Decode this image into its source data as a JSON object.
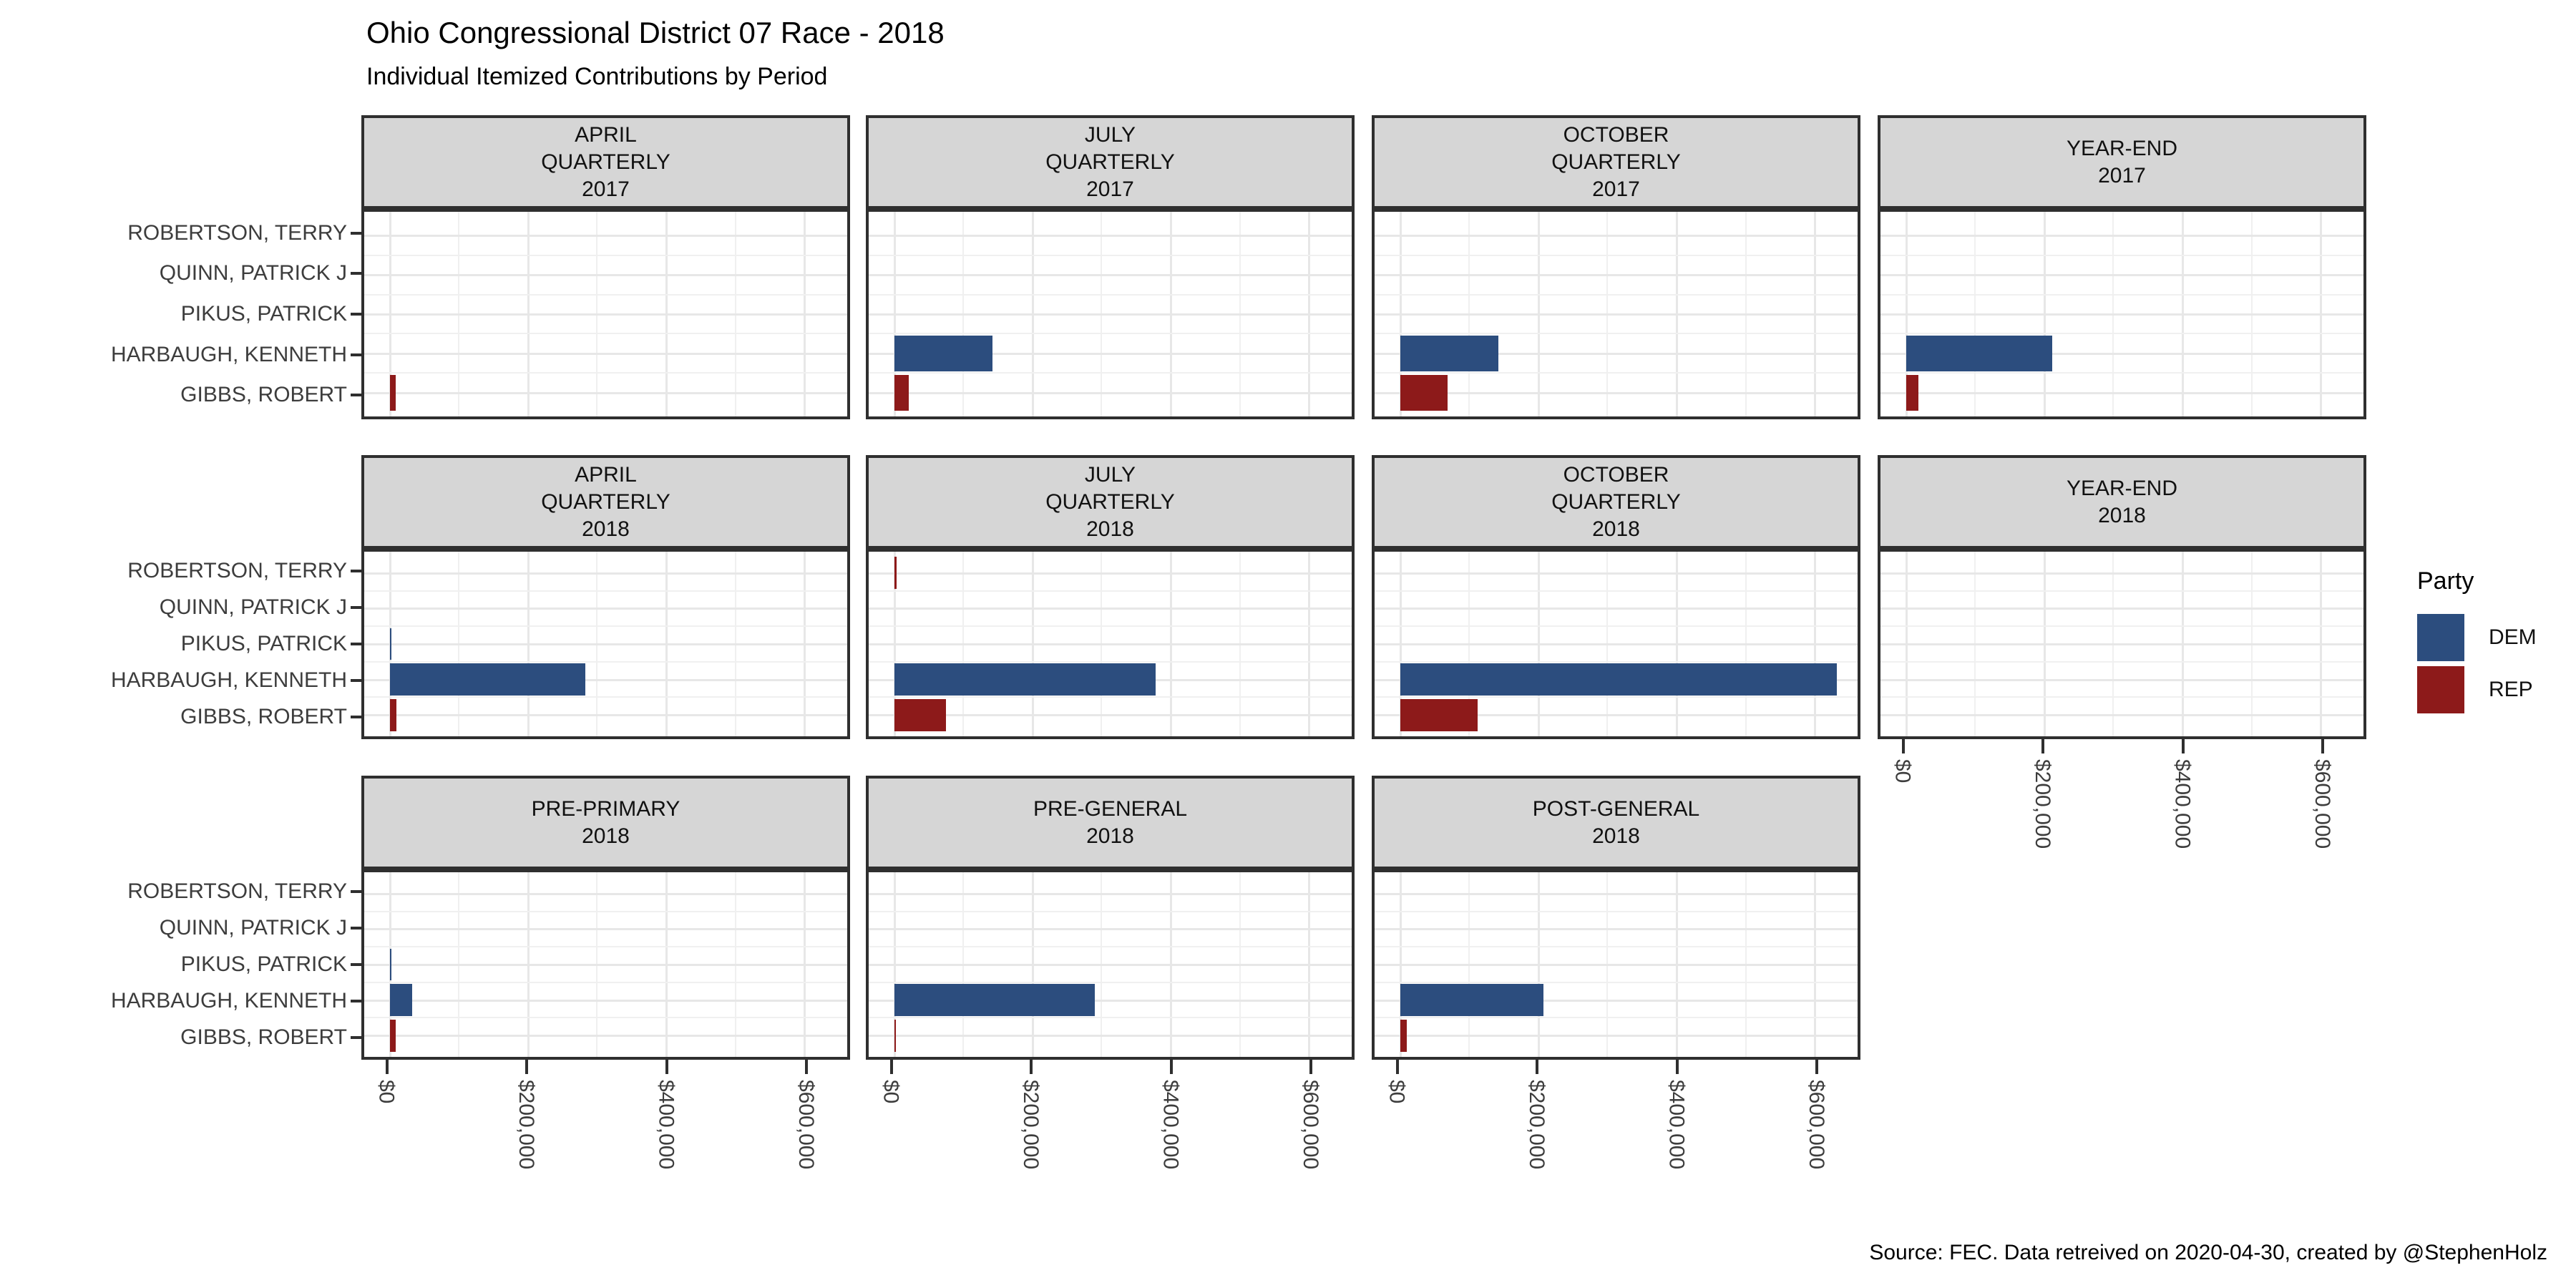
{
  "title": "Ohio Congressional District 07 Race - 2018",
  "subtitle": "Individual Itemized Contributions by Period",
  "caption": "Source: FEC. Data retreived on 2020-04-30, created by @StephenHolz",
  "legend": {
    "title": "Party",
    "items": [
      {
        "label": "DEM",
        "color": "#2C4D7E"
      },
      {
        "label": "REP",
        "color": "#8D1A1A"
      }
    ]
  },
  "style": {
    "dem_color": "#2C4D7E",
    "rep_color": "#8D1A1A",
    "strip_bg": "#D6D6D6",
    "panel_border": "#2F2F2F",
    "grid_major": "#E7E7E7",
    "grid_minor": "#F0F0F0",
    "axis_text": "#3D3D3D"
  },
  "chart_data": {
    "type": "bar",
    "orientation": "horizontal",
    "grid": "on",
    "legend_position": "right",
    "x_axis": {
      "tick_labels": [
        "$0",
        "$200,000",
        "$400,000",
        "$600,000"
      ],
      "tick_values": [
        0,
        200000,
        400000,
        600000
      ],
      "range": [
        0,
        670000
      ],
      "minor_gridline_step": 100000
    },
    "y_categories_top_to_bottom": [
      "ROBERTSON, TERRY",
      "QUINN, PATRICK J",
      "PIKUS, PATRICK",
      "HARBAUGH, KENNETH",
      "GIBBS, ROBERT"
    ],
    "facets": [
      {
        "title_lines": [
          "APRIL",
          "QUARTERLY",
          "2017"
        ],
        "row": 0,
        "col": 0,
        "bottom_axis": false,
        "bars": [
          {
            "candidate": "GIBBS, ROBERT",
            "party": "REP",
            "value": 9000
          }
        ]
      },
      {
        "title_lines": [
          "JULY",
          "QUARTERLY",
          "2017"
        ],
        "row": 0,
        "col": 1,
        "bottom_axis": false,
        "bars": [
          {
            "candidate": "HARBAUGH, KENNETH",
            "party": "DEM",
            "value": 142000
          },
          {
            "candidate": "GIBBS, ROBERT",
            "party": "REP",
            "value": 21000
          }
        ]
      },
      {
        "title_lines": [
          "OCTOBER",
          "QUARTERLY",
          "2017"
        ],
        "row": 0,
        "col": 2,
        "bottom_axis": false,
        "bars": [
          {
            "candidate": "HARBAUGH, KENNETH",
            "party": "DEM",
            "value": 142000
          },
          {
            "candidate": "GIBBS, ROBERT",
            "party": "REP",
            "value": 69000
          }
        ]
      },
      {
        "title_lines": [
          "YEAR-END",
          "2017"
        ],
        "row": 0,
        "col": 3,
        "bottom_axis": false,
        "bars": [
          {
            "candidate": "HARBAUGH, KENNETH",
            "party": "DEM",
            "value": 212000
          },
          {
            "candidate": "GIBBS, ROBERT",
            "party": "REP",
            "value": 18000
          }
        ]
      },
      {
        "title_lines": [
          "APRIL",
          "QUARTERLY",
          "2018"
        ],
        "row": 1,
        "col": 0,
        "bottom_axis": false,
        "bars": [
          {
            "candidate": "PIKUS, PATRICK",
            "party": "DEM",
            "value": 2000
          },
          {
            "candidate": "HARBAUGH, KENNETH",
            "party": "DEM",
            "value": 283000
          },
          {
            "candidate": "GIBBS, ROBERT",
            "party": "REP",
            "value": 10000
          }
        ]
      },
      {
        "title_lines": [
          "JULY",
          "QUARTERLY",
          "2018"
        ],
        "row": 1,
        "col": 1,
        "bottom_axis": false,
        "bars": [
          {
            "candidate": "ROBERTSON, TERRY",
            "party": "REP",
            "value": 4000
          },
          {
            "candidate": "HARBAUGH, KENNETH",
            "party": "DEM",
            "value": 378000
          },
          {
            "candidate": "GIBBS, ROBERT",
            "party": "REP",
            "value": 75000
          }
        ]
      },
      {
        "title_lines": [
          "OCTOBER",
          "QUARTERLY",
          "2018"
        ],
        "row": 1,
        "col": 2,
        "bottom_axis": false,
        "bars": [
          {
            "candidate": "HARBAUGH, KENNETH",
            "party": "DEM",
            "value": 632000
          },
          {
            "candidate": "GIBBS, ROBERT",
            "party": "REP",
            "value": 112000
          }
        ]
      },
      {
        "title_lines": [
          "YEAR-END",
          "2018"
        ],
        "row": 1,
        "col": 3,
        "bottom_axis": true,
        "bars": []
      },
      {
        "title_lines": [
          "PRE-PRIMARY",
          "2018"
        ],
        "row": 2,
        "col": 0,
        "bottom_axis": true,
        "bars": [
          {
            "candidate": "PIKUS, PATRICK",
            "party": "DEM",
            "value": 1500
          },
          {
            "candidate": "HARBAUGH, KENNETH",
            "party": "DEM",
            "value": 33000
          },
          {
            "candidate": "GIBBS, ROBERT",
            "party": "REP",
            "value": 9000
          }
        ]
      },
      {
        "title_lines": [
          "PRE-GENERAL",
          "2018"
        ],
        "row": 2,
        "col": 1,
        "bottom_axis": true,
        "bars": [
          {
            "candidate": "HARBAUGH, KENNETH",
            "party": "DEM",
            "value": 290000
          },
          {
            "candidate": "GIBBS, ROBERT",
            "party": "REP",
            "value": 2000
          }
        ]
      },
      {
        "title_lines": [
          "POST-GENERAL",
          "2018"
        ],
        "row": 2,
        "col": 2,
        "bottom_axis": true,
        "bars": [
          {
            "candidate": "HARBAUGH, KENNETH",
            "party": "DEM",
            "value": 208000
          },
          {
            "candidate": "GIBBS, ROBERT",
            "party": "REP",
            "value": 10000
          }
        ]
      }
    ]
  }
}
